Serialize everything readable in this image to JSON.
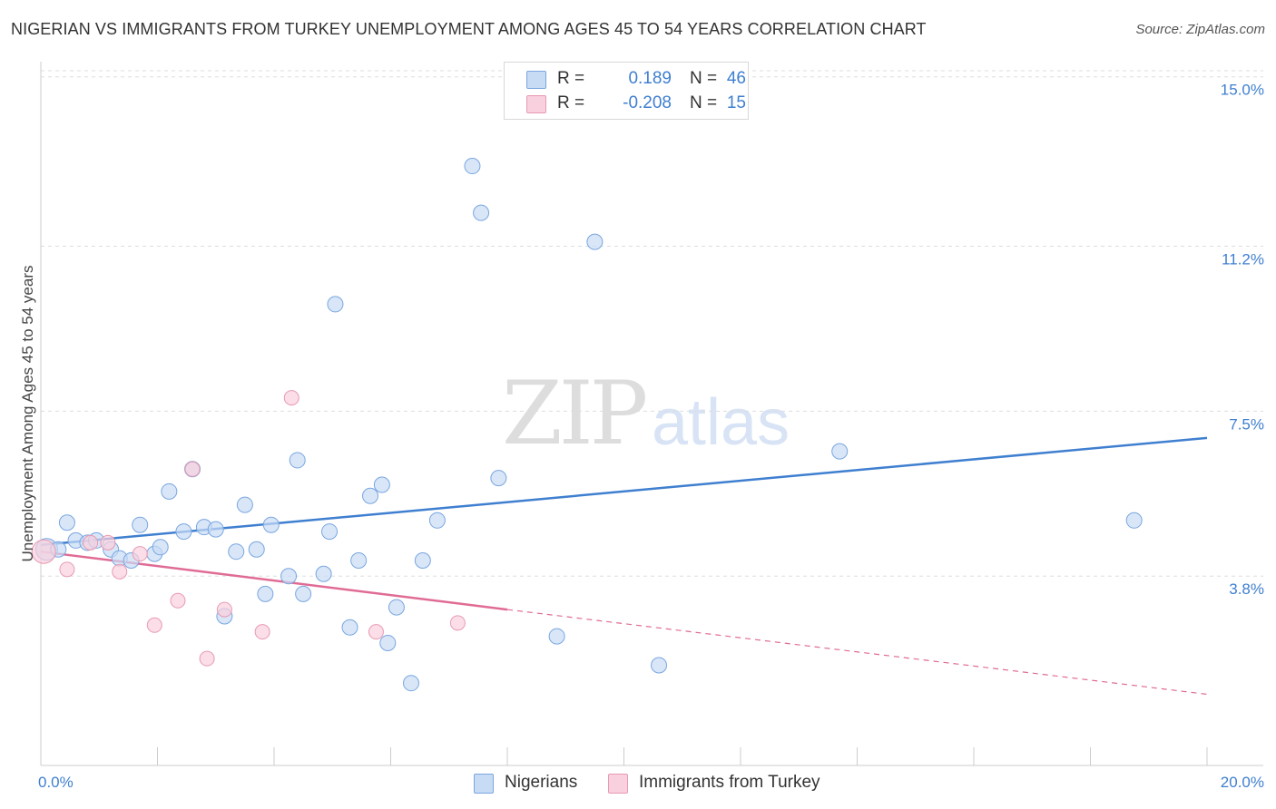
{
  "header": {
    "title": "NIGERIAN VS IMMIGRANTS FROM TURKEY UNEMPLOYMENT AMONG AGES 45 TO 54 YEARS CORRELATION CHART",
    "source": "Source: ZipAtlas.com"
  },
  "watermark": {
    "zip": "ZIP",
    "atlas": "atlas"
  },
  "legend": {
    "rows": [
      {
        "r_label": "R =",
        "r_value": "0.189",
        "n_label": "N =",
        "n_value": "46",
        "color": "#aecbef"
      },
      {
        "r_label": "R =",
        "r_value": "-0.208",
        "n_label": "N =",
        "n_value": "15",
        "color": "#f7c0d0"
      }
    ]
  },
  "bottom_legend": {
    "nigerians": "Nigerians",
    "turkey": "Immigrants from Turkey"
  },
  "chart_data": {
    "type": "scatter",
    "title": "NIGERIAN VS IMMIGRANTS FROM TURKEY UNEMPLOYMENT AMONG AGES 45 TO 54 YEARS CORRELATION CHART",
    "xlabel": "",
    "ylabel": "Unemployment Among Ages 45 to 54 years",
    "xlim": [
      0,
      20
    ],
    "ylim": [
      0,
      15.3
    ],
    "x_tick_labels": [
      "0.0%",
      "20.0%"
    ],
    "y_ticks": [
      3.8,
      7.5,
      11.2,
      15.0
    ],
    "y_tick_labels": [
      "3.8%",
      "7.5%",
      "11.2%",
      "15.0%"
    ],
    "grid": true,
    "colors": {
      "nigerians": "#3f7fd0",
      "nigerians_fill": "#c7dbf5",
      "turkey": "#e06b95",
      "turkey_fill": "#f9d0dd"
    },
    "series": [
      {
        "name": "Nigerians",
        "points": [
          [
            0.1,
            4.4
          ],
          [
            0.3,
            4.4
          ],
          [
            0.45,
            5.0
          ],
          [
            0.6,
            4.6
          ],
          [
            0.8,
            4.55
          ],
          [
            0.95,
            4.6
          ],
          [
            1.2,
            4.4
          ],
          [
            1.35,
            4.2
          ],
          [
            1.55,
            4.15
          ],
          [
            1.7,
            4.95
          ],
          [
            1.95,
            4.3
          ],
          [
            2.05,
            4.45
          ],
          [
            2.2,
            5.7
          ],
          [
            2.45,
            4.8
          ],
          [
            2.6,
            6.2
          ],
          [
            2.8,
            4.9
          ],
          [
            3.0,
            4.85
          ],
          [
            3.15,
            2.9
          ],
          [
            3.35,
            4.35
          ],
          [
            3.5,
            5.4
          ],
          [
            3.7,
            4.4
          ],
          [
            3.85,
            3.4
          ],
          [
            3.95,
            4.95
          ],
          [
            4.25,
            3.8
          ],
          [
            4.4,
            6.4
          ],
          [
            4.5,
            3.4
          ],
          [
            4.85,
            3.85
          ],
          [
            5.05,
            9.9
          ],
          [
            4.95,
            4.8
          ],
          [
            5.3,
            2.65
          ],
          [
            5.45,
            4.15
          ],
          [
            5.65,
            5.6
          ],
          [
            5.85,
            5.85
          ],
          [
            5.95,
            2.3
          ],
          [
            6.1,
            3.1
          ],
          [
            6.35,
            1.4
          ],
          [
            6.55,
            4.15
          ],
          [
            6.8,
            5.05
          ],
          [
            7.4,
            13.0
          ],
          [
            7.55,
            11.95
          ],
          [
            7.85,
            6.0
          ],
          [
            8.85,
            2.45
          ],
          [
            9.5,
            11.3
          ],
          [
            10.6,
            1.8
          ],
          [
            13.7,
            6.6
          ],
          [
            18.75,
            5.05
          ]
        ]
      },
      {
        "name": "Immigrants from Turkey",
        "points": [
          [
            0.05,
            4.35
          ],
          [
            0.45,
            3.95
          ],
          [
            0.85,
            4.55
          ],
          [
            1.15,
            4.55
          ],
          [
            1.35,
            3.9
          ],
          [
            1.7,
            4.3
          ],
          [
            1.95,
            2.7
          ],
          [
            2.35,
            3.25
          ],
          [
            2.6,
            6.2
          ],
          [
            2.85,
            1.95
          ],
          [
            3.15,
            3.05
          ],
          [
            3.8,
            2.55
          ],
          [
            4.3,
            7.8
          ],
          [
            5.75,
            2.55
          ],
          [
            7.15,
            2.75
          ]
        ]
      }
    ],
    "trendlines": [
      {
        "name": "Nigerians",
        "x": [
          0,
          20
        ],
        "y": [
          4.5,
          6.9
        ]
      },
      {
        "name": "Immigrants from Turkey",
        "x": [
          0,
          8.0
        ],
        "y": [
          4.35,
          3.05
        ],
        "dashed_to": [
          20,
          1.15
        ]
      }
    ]
  }
}
